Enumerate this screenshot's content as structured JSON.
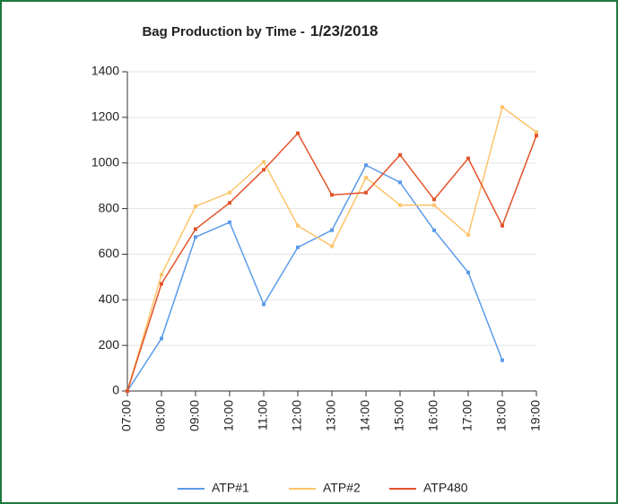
{
  "chart_data": {
    "type": "line",
    "title": "Bag Production by Time -",
    "date": "1/23/2018",
    "x": [
      "07:00",
      "08:00",
      "09:00",
      "10:00",
      "11:00",
      "12:00",
      "13:00",
      "14:00",
      "15:00",
      "16:00",
      "17:00",
      "18:00",
      "19:00"
    ],
    "series": [
      {
        "name": "ATP#1",
        "color": "#5b9bea",
        "values": [
          0,
          230,
          675,
          740,
          380,
          630,
          705,
          990,
          915,
          705,
          520,
          135,
          null
        ]
      },
      {
        "name": "ATP#2",
        "color": "#fdc46a",
        "values": [
          0,
          510,
          810,
          870,
          1005,
          725,
          635,
          935,
          815,
          815,
          685,
          1245,
          1135
        ]
      },
      {
        "name": "ATP480",
        "color": "#e2542a",
        "values": [
          0,
          470,
          710,
          825,
          970,
          1130,
          860,
          870,
          1035,
          840,
          1020,
          725,
          1120
        ]
      }
    ],
    "ylim": [
      0,
      1400
    ],
    "yticks": [
      0,
      200,
      400,
      600,
      800,
      1000,
      1200,
      1400
    ],
    "grid": true,
    "legend": "bottom"
  }
}
